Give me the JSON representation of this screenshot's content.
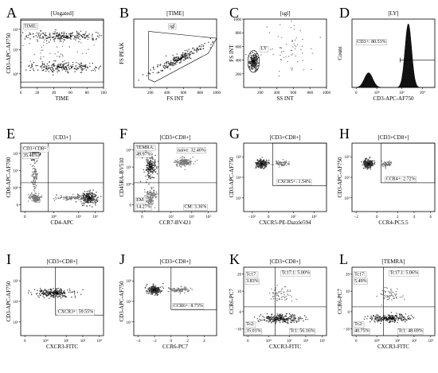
{
  "panels": [
    {
      "letter": "A",
      "title": "[Ungated]",
      "xlabel": "TIME",
      "ylabel": "CD3-APC-AF750",
      "xticks": [
        {
          "v": 0,
          "t": "0"
        },
        {
          "v": 0.2,
          "t": "20"
        },
        {
          "v": 0.4,
          "t": "40"
        },
        {
          "v": 0.6,
          "t": "60"
        },
        {
          "v": 0.8,
          "t": "80"
        },
        {
          "v": 1,
          "t": "100"
        }
      ],
      "yticks": [
        {
          "v": 0.2,
          "t": "10⁰"
        },
        {
          "v": 0.55,
          "t": "10¹"
        },
        {
          "v": 0.85,
          "t": "10²"
        }
      ],
      "gates": [
        {
          "type": "rect",
          "x0": 0,
          "x1": 1,
          "y0": 0.08,
          "y1": 0.98
        }
      ],
      "labels": [
        {
          "text": "TIME:",
          "x": 0.03,
          "y": 0.88
        }
      ],
      "blobs": [
        {
          "x": 0.5,
          "y": 0.75,
          "w": 0.5,
          "h": 0.07,
          "c": 0.9
        },
        {
          "x": 0.5,
          "y": 0.3,
          "w": 0.5,
          "h": 0.07,
          "c": 0.8
        },
        {
          "x": 0.5,
          "y": 0.52,
          "w": 0.5,
          "h": 0.25,
          "c": 0.12
        }
      ]
    },
    {
      "letter": "B",
      "title": "[TIME]",
      "xlabel": "FS INT",
      "ylabel": "FS PEAK",
      "xticks": [
        {
          "v": 0.2,
          "t": "200"
        },
        {
          "v": 0.4,
          "t": "400"
        },
        {
          "v": 0.6,
          "t": "600"
        },
        {
          "v": 0.8,
          "t": "800"
        },
        {
          "v": 1,
          "t": "1000"
        }
      ],
      "yticks": [],
      "gates": [
        {
          "type": "poly",
          "pts": [
            [
              0.18,
              0.12
            ],
            [
              0.18,
              0.82
            ],
            [
              1,
              0.72
            ],
            [
              0.9,
              0.5
            ],
            [
              0.25,
              0.08
            ]
          ]
        }
      ],
      "labels": [
        {
          "text": "sgl",
          "x": 0.42,
          "y": 0.88
        }
      ],
      "blobs": [
        {
          "x": 0.55,
          "y": 0.42,
          "w": 0.4,
          "h": 0.06,
          "c": 0.9,
          "rot": -32
        }
      ]
    },
    {
      "letter": "C",
      "title": "[sgl]",
      "xlabel": "SS INT",
      "ylabel": "FS INT",
      "xticks": [
        {
          "v": 0.2,
          "t": "200"
        },
        {
          "v": 0.4,
          "t": "400"
        },
        {
          "v": 0.6,
          "t": "600"
        },
        {
          "v": 0.8,
          "t": "800"
        },
        {
          "v": 1,
          "t": "1000"
        }
      ],
      "yticks": [
        {
          "v": 0.2,
          "t": "200"
        },
        {
          "v": 0.4,
          "t": "400"
        },
        {
          "v": 0.6,
          "t": "600"
        },
        {
          "v": 0.8,
          "t": "800"
        },
        {
          "v": 1,
          "t": "1000"
        }
      ],
      "gates": [
        {
          "type": "ell",
          "x": 0.12,
          "y": 0.38,
          "rx": 0.07,
          "ry": 0.16
        }
      ],
      "labels": [
        {
          "text": "LY",
          "x": 0.2,
          "y": 0.55
        }
      ],
      "blobs": [
        {
          "x": 0.12,
          "y": 0.38,
          "w": 0.05,
          "h": 0.12,
          "c": 0.9
        },
        {
          "x": 0.55,
          "y": 0.55,
          "w": 0.35,
          "h": 0.35,
          "c": 0.15
        }
      ]
    },
    {
      "letter": "D",
      "title": "[LY]",
      "xlabel": "CD3-APC-AF750",
      "ylabel": "Count",
      "xticks": [
        {
          "v": 0.05,
          "t": "0"
        },
        {
          "v": 0.3,
          "t": "10⁰"
        },
        {
          "v": 0.6,
          "t": "10²"
        },
        {
          "v": 0.85,
          "t": "10⁴"
        }
      ],
      "yticks": [],
      "gates": [
        {
          "type": "hline",
          "x0": 0.58,
          "x1": 1,
          "y": 0.4
        }
      ],
      "labels": [
        {
          "text": "CD3+: 80.53%",
          "x": 0.05,
          "y": 0.65
        }
      ],
      "hist": {
        "peaks": [
          {
            "x": 0.2,
            "h": 0.22,
            "w": 0.05
          },
          {
            "x": 0.68,
            "h": 0.95,
            "w": 0.04
          }
        ]
      }
    },
    {
      "letter": "E",
      "title": "[CD3+]",
      "xlabel": "CD4-APC",
      "ylabel": "CD8-APC-AF700",
      "xticks": [
        {
          "v": 0.05,
          "t": "0"
        },
        {
          "v": 0.4,
          "t": "10⁰"
        },
        {
          "v": 0.7,
          "t": "10²"
        },
        {
          "v": 0.9,
          "t": "10³"
        }
      ],
      "yticks": [
        {
          "v": 0.1,
          "t": "0"
        },
        {
          "v": 0.35,
          "t": "10⁰"
        },
        {
          "v": 0.6,
          "t": "10¹"
        },
        {
          "v": 0.85,
          "t": "10²"
        }
      ],
      "gates": [
        {
          "type": "cross",
          "x": 0.33,
          "y": 0.42
        }
      ],
      "labels": [
        {
          "text": "CD3+CD8+:",
          "x": 0.02,
          "y": 0.9
        },
        {
          "text": "35.48%",
          "x": 0.02,
          "y": 0.8
        }
      ],
      "blobs": [
        {
          "x": 0.17,
          "y": 0.82,
          "w": 0.05,
          "h": 0.06,
          "c": 0.9
        },
        {
          "x": 0.82,
          "y": 0.2,
          "w": 0.1,
          "h": 0.09,
          "c": 0.9
        },
        {
          "x": 0.17,
          "y": 0.2,
          "w": 0.06,
          "h": 0.06,
          "c": 0.5
        },
        {
          "x": 0.17,
          "y": 0.5,
          "w": 0.03,
          "h": 0.25,
          "c": 0.3
        },
        {
          "x": 0.6,
          "y": 0.2,
          "w": 0.2,
          "h": 0.04,
          "c": 0.3
        }
      ]
    },
    {
      "letter": "F",
      "title": "[CD3+CD8+]",
      "xlabel": "CCR7-BV421",
      "ylabel": "CD45RA-BV510",
      "xticks": [
        {
          "v": 0.1,
          "t": "0"
        },
        {
          "v": 0.45,
          "t": "10¹"
        },
        {
          "v": 0.7,
          "t": "10²"
        },
        {
          "v": 0.9,
          "t": "10³"
        }
      ],
      "yticks": [
        {
          "v": 0.1,
          "t": "0"
        },
        {
          "v": 0.4,
          "t": "10⁰"
        },
        {
          "v": 0.65,
          "t": "10¹"
        },
        {
          "v": 0.9,
          "t": "10²"
        }
      ],
      "gates": [
        {
          "type": "cross",
          "x": 0.3,
          "y": 0.42
        }
      ],
      "labels": [
        {
          "text": "TEMRA:",
          "x": 0.02,
          "y": 0.92
        },
        {
          "text": "49.97%",
          "x": 0.02,
          "y": 0.82
        },
        {
          "text": "naive: 32.40%",
          "x": 0.52,
          "y": 0.88
        },
        {
          "text": "EM:",
          "x": 0.02,
          "y": 0.15
        },
        {
          "text": "14.27%",
          "x": 0.02,
          "y": 0.05
        },
        {
          "text": "CM: 3.36%",
          "x": 0.6,
          "y": 0.05
        }
      ],
      "blobs": [
        {
          "x": 0.2,
          "y": 0.65,
          "w": 0.07,
          "h": 0.2,
          "c": 0.7
        },
        {
          "x": 0.2,
          "y": 0.22,
          "w": 0.07,
          "h": 0.12,
          "c": 0.5
        },
        {
          "x": 0.6,
          "y": 0.72,
          "w": 0.1,
          "h": 0.06,
          "c": 0.6
        }
      ]
    },
    {
      "letter": "G",
      "title": "[CD3+CD8+]",
      "xlabel": "CXCR5-PE-Dazzle594",
      "ylabel": "CD3-APC-AF750",
      "xticks": [
        {
          "v": 0.1,
          "t": "−10²"
        },
        {
          "v": 0.3,
          "t": "0"
        },
        {
          "v": 0.6,
          "t": "10²"
        },
        {
          "v": 0.85,
          "t": "10³"
        }
      ],
      "yticks": [
        {
          "v": 0.2,
          "t": "10¹"
        },
        {
          "v": 0.5,
          "t": "10²"
        },
        {
          "v": 0.8,
          "t": "10³"
        }
      ],
      "gates": [
        {
          "type": "rect",
          "x0": 0.35,
          "x1": 1,
          "y0": 0.38,
          "y1": 1
        }
      ],
      "labels": [
        {
          "text": "CXCR5+: 1.54%",
          "x": 0.4,
          "y": 0.42
        }
      ],
      "blobs": [
        {
          "x": 0.22,
          "y": 0.7,
          "w": 0.07,
          "h": 0.06,
          "c": 0.95
        },
        {
          "x": 0.45,
          "y": 0.7,
          "w": 0.08,
          "h": 0.04,
          "c": 0.2
        }
      ]
    },
    {
      "letter": "H",
      "title": "[CD3+CD8+]",
      "xlabel": "CCR4-PC5.5",
      "ylabel": "CD3-APC-AF750",
      "xticks": [
        {
          "v": 0.05,
          "t": "−2"
        },
        {
          "v": 0.3,
          "t": "0"
        },
        {
          "v": 0.55,
          "t": "2"
        },
        {
          "v": 0.75,
          "t": "4"
        },
        {
          "v": 0.95,
          "t": "6"
        }
      ],
      "yticks": [
        {
          "v": 0.2,
          "t": "10¹"
        },
        {
          "v": 0.5,
          "t": "10²"
        },
        {
          "v": 0.8,
          "t": "10³"
        }
      ],
      "gates": [
        {
          "type": "rect",
          "x0": 0.35,
          "x1": 1,
          "y0": 0.42,
          "y1": 1
        }
      ],
      "labels": [
        {
          "text": "CCR4+: 2.72%",
          "x": 0.4,
          "y": 0.46
        }
      ],
      "blobs": [
        {
          "x": 0.2,
          "y": 0.7,
          "w": 0.06,
          "h": 0.06,
          "c": 0.95
        },
        {
          "x": 0.42,
          "y": 0.7,
          "w": 0.07,
          "h": 0.04,
          "c": 0.2
        }
      ]
    },
    {
      "letter": "I",
      "title": "[CD3+CD8+]",
      "xlabel": "CXCR3-FITC",
      "ylabel": "CD3-APC-AF750",
      "xticks": [
        {
          "v": 0.05,
          "t": "0"
        },
        {
          "v": 0.3,
          "t": "10⁰"
        },
        {
          "v": 0.55,
          "t": "10¹"
        },
        {
          "v": 0.75,
          "t": "10²"
        },
        {
          "v": 0.95,
          "t": "10³"
        }
      ],
      "yticks": [
        {
          "v": 0.2,
          "t": "10¹"
        },
        {
          "v": 0.5,
          "t": "10²"
        },
        {
          "v": 0.8,
          "t": "10³"
        }
      ],
      "gates": [
        {
          "type": "rect",
          "x0": 0.42,
          "x1": 1,
          "y0": 0.3,
          "y1": 1
        }
      ],
      "labels": [
        {
          "text": "CXCR3+: 59.55%",
          "x": 0.44,
          "y": 0.33
        }
      ],
      "blobs": [
        {
          "x": 0.4,
          "y": 0.62,
          "w": 0.22,
          "h": 0.06,
          "c": 0.95
        }
      ]
    },
    {
      "letter": "J",
      "title": "[CD3+CD8+]",
      "xlabel": "CCR6-PC7",
      "ylabel": "CD3-APC-AF750",
      "xticks": [
        {
          "v": 0.05,
          "t": "−4"
        },
        {
          "v": 0.25,
          "t": "−2"
        },
        {
          "v": 0.45,
          "t": "0"
        },
        {
          "v": 0.65,
          "t": "2"
        },
        {
          "v": 0.85,
          "t": "4"
        }
      ],
      "yticks": [
        {
          "v": 0.2,
          "t": "10¹"
        },
        {
          "v": 0.5,
          "t": "10²"
        },
        {
          "v": 0.8,
          "t": "10³"
        }
      ],
      "gates": [
        {
          "type": "rect",
          "x0": 0.45,
          "x1": 1,
          "y0": 0.38,
          "y1": 1
        }
      ],
      "labels": [
        {
          "text": "CCR6+: 8.73%",
          "x": 0.47,
          "y": 0.42
        }
      ],
      "blobs": [
        {
          "x": 0.25,
          "y": 0.67,
          "w": 0.08,
          "h": 0.06,
          "c": 0.95
        },
        {
          "x": 0.55,
          "y": 0.67,
          "w": 0.12,
          "h": 0.04,
          "c": 0.3
        }
      ]
    },
    {
      "letter": "K",
      "title": "[CD3+CD8+]",
      "xlabel": "CXCR3-FITC",
      "ylabel": "CCR6-PC7",
      "xticks": [
        {
          "v": 0.05,
          "t": "0"
        },
        {
          "v": 0.3,
          "t": "10⁰"
        },
        {
          "v": 0.55,
          "t": "10¹"
        },
        {
          "v": 0.75,
          "t": "10²"
        },
        {
          "v": 0.95,
          "t": "10³"
        }
      ],
      "yticks": [
        {
          "v": 0.1,
          "t": "−10"
        },
        {
          "v": 0.35,
          "t": "0"
        },
        {
          "v": 0.65,
          "t": "10"
        },
        {
          "v": 0.9,
          "t": "20"
        }
      ],
      "gates": [
        {
          "type": "cross",
          "x": 0.38,
          "y": 0.42
        }
      ],
      "labels": [
        {
          "text": "Tc17:",
          "x": 0.02,
          "y": 0.88
        },
        {
          "text": "3.83%",
          "x": 0.02,
          "y": 0.78
        },
        {
          "text": "Tc17.1: 5.00%",
          "x": 0.45,
          "y": 0.9
        },
        {
          "text": "Tc2:",
          "x": 0.02,
          "y": 0.15
        },
        {
          "text": "35.01%",
          "x": 0.02,
          "y": 0.05
        },
        {
          "text": "Tc1: 56.16%",
          "x": 0.55,
          "y": 0.05
        }
      ],
      "blobs": [
        {
          "x": 0.45,
          "y": 0.25,
          "w": 0.25,
          "h": 0.06,
          "c": 0.95
        },
        {
          "x": 0.45,
          "y": 0.6,
          "w": 0.15,
          "h": 0.1,
          "c": 0.15
        }
      ]
    },
    {
      "letter": "L",
      "title": "[TEMRA]",
      "xlabel": "CXCR3-FITC",
      "ylabel": "CCR6-PC7",
      "xticks": [
        {
          "v": 0.05,
          "t": "0"
        },
        {
          "v": 0.3,
          "t": "10⁰"
        },
        {
          "v": 0.55,
          "t": "10¹"
        },
        {
          "v": 0.75,
          "t": "10²"
        },
        {
          "v": 0.95,
          "t": "10³"
        }
      ],
      "yticks": [
        {
          "v": 0.1,
          "t": "−10"
        },
        {
          "v": 0.35,
          "t": "0"
        },
        {
          "v": 0.65,
          "t": "10"
        },
        {
          "v": 0.9,
          "t": "20"
        }
      ],
      "gates": [
        {
          "type": "cross",
          "x": 0.38,
          "y": 0.42
        }
      ],
      "labels": [
        {
          "text": "Tc17:",
          "x": 0.02,
          "y": 0.88
        },
        {
          "text": "5.49%",
          "x": 0.02,
          "y": 0.78
        },
        {
          "text": "Tc17.1: 5.06%",
          "x": 0.45,
          "y": 0.9
        },
        {
          "text": "Tc2:",
          "x": 0.02,
          "y": 0.15
        },
        {
          "text": "40.75%",
          "x": 0.02,
          "y": 0.05
        },
        {
          "text": "Tc1: 48.69%",
          "x": 0.55,
          "y": 0.05
        }
      ],
      "blobs": [
        {
          "x": 0.45,
          "y": 0.25,
          "w": 0.25,
          "h": 0.06,
          "c": 0.9
        },
        {
          "x": 0.45,
          "y": 0.6,
          "w": 0.15,
          "h": 0.1,
          "c": 0.15
        }
      ]
    }
  ]
}
